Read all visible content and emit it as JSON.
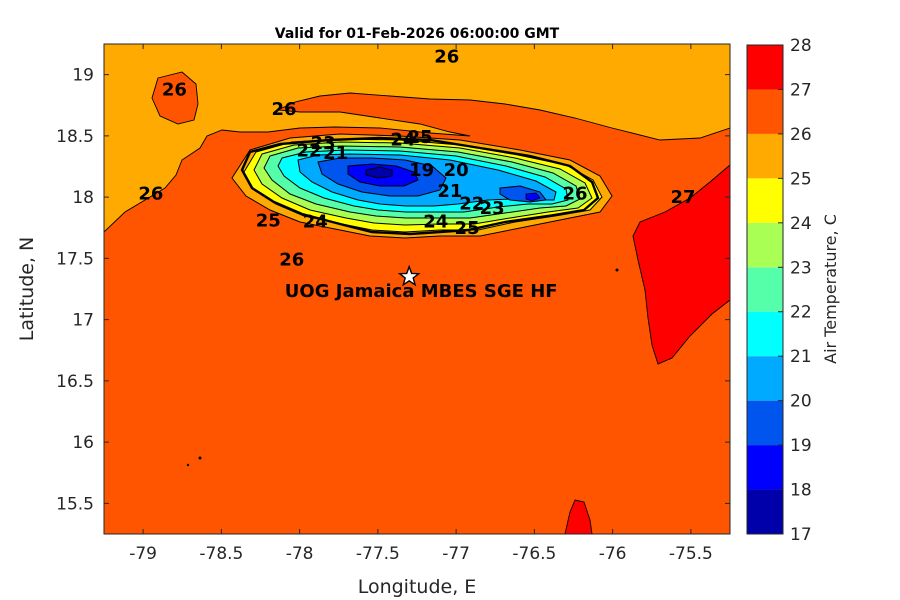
{
  "title": "Valid for 01-Feb-2026 06:00:00 GMT",
  "xlabel": "Longitude, E",
  "ylabel": "Latitude, N",
  "colorbar_label": "Air Temperature, C",
  "station_label": "UOG Jamaica MBES SGE HF",
  "colors": {
    "c17": "#0000AA",
    "c18": "#0000FF",
    "c19": "#0055EE",
    "c20": "#00AAFF",
    "c21": "#00FFFF",
    "c22": "#55FFAA",
    "c23": "#AAFF55",
    "c24": "#FFFF00",
    "c25": "#FFAA00",
    "c26": "#FF5500",
    "c27": "#FF0000",
    "c28": "#AA0000"
  },
  "chart_data": {
    "type": "contour-map",
    "xlim": [
      -79.25,
      -75.25
    ],
    "ylim": [
      15.25,
      19.25
    ],
    "xticks": [
      "-79",
      "-78.5",
      "-78",
      "-77.5",
      "-77",
      "-76.5",
      "-76",
      "-75.5"
    ],
    "yticks": [
      "15.5",
      "16",
      "16.5",
      "17",
      "17.5",
      "18",
      "18.5",
      "19"
    ],
    "colorbar_ticks": [
      "17",
      "18",
      "19",
      "20",
      "21",
      "22",
      "23",
      "24",
      "25",
      "26",
      "27",
      "28"
    ],
    "colorbar_range": [
      17,
      28
    ],
    "station": {
      "lon": -77.3,
      "lat": 17.35
    },
    "contour_labels": [
      {
        "text": "26",
        "lon": -78.8,
        "lat": 18.88
      },
      {
        "text": "26",
        "lon": -77.06,
        "lat": 19.15
      },
      {
        "text": "26",
        "lon": -78.1,
        "lat": 18.72
      },
      {
        "text": "26",
        "lon": -78.95,
        "lat": 18.03
      },
      {
        "text": "26",
        "lon": -76.24,
        "lat": 18.03
      },
      {
        "text": "26",
        "lon": -78.05,
        "lat": 17.49
      },
      {
        "text": "27",
        "lon": -75.55,
        "lat": 18.0
      },
      {
        "text": "25",
        "lon": -77.23,
        "lat": 18.49
      },
      {
        "text": "25",
        "lon": -78.2,
        "lat": 17.81
      },
      {
        "text": "25",
        "lon": -76.93,
        "lat": 17.75
      },
      {
        "text": "24",
        "lon": -77.34,
        "lat": 18.47
      },
      {
        "text": "24",
        "lon": -77.9,
        "lat": 17.8
      },
      {
        "text": "24",
        "lon": -77.13,
        "lat": 17.8
      },
      {
        "text": "23",
        "lon": -77.85,
        "lat": 18.44
      },
      {
        "text": "23",
        "lon": -76.77,
        "lat": 17.91
      },
      {
        "text": "22",
        "lon": -77.94,
        "lat": 18.38
      },
      {
        "text": "22",
        "lon": -76.9,
        "lat": 17.95
      },
      {
        "text": "21",
        "lon": -77.77,
        "lat": 18.36
      },
      {
        "text": "21",
        "lon": -77.04,
        "lat": 18.05
      },
      {
        "text": "20",
        "lon": -77.0,
        "lat": 18.22
      },
      {
        "text": "19",
        "lon": -77.22,
        "lat": 18.22
      }
    ]
  }
}
